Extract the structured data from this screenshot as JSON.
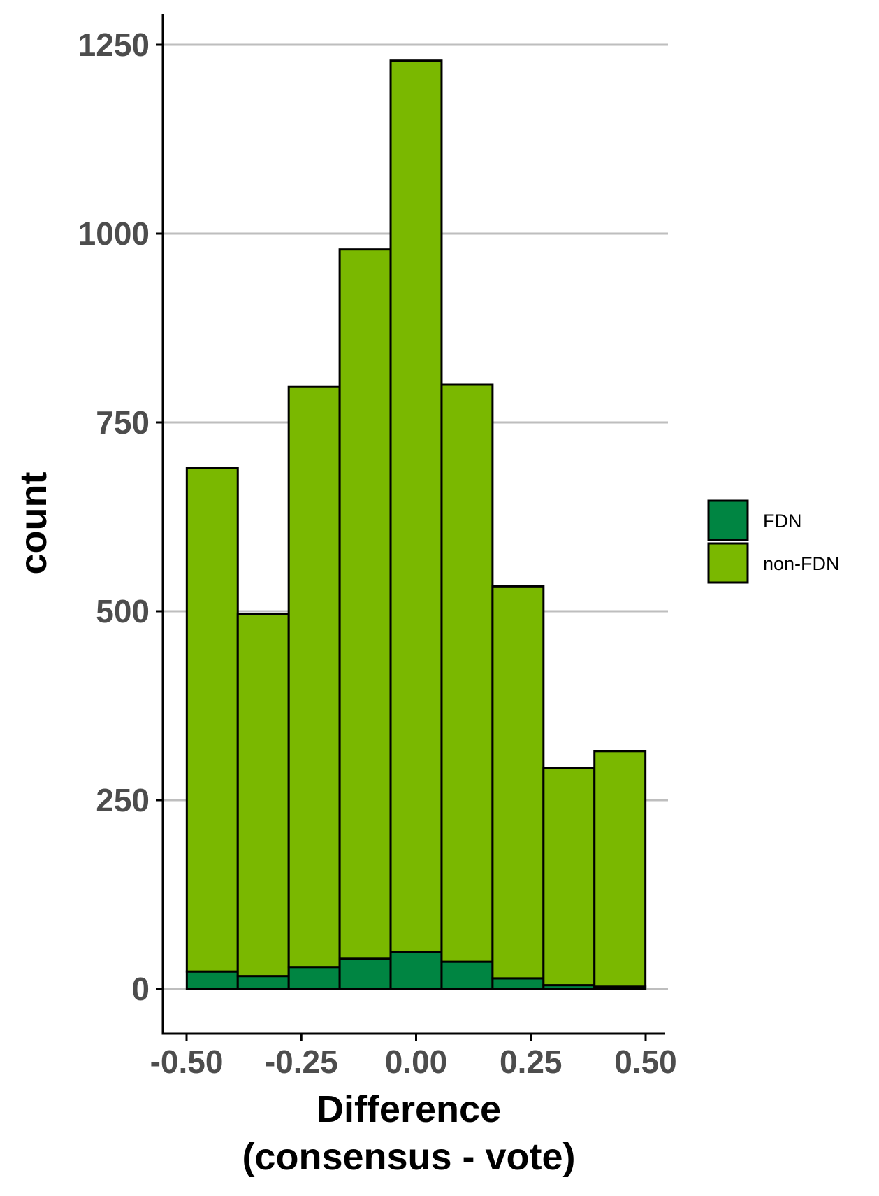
{
  "chart_data": {
    "type": "bar",
    "stacked": true,
    "histogram": true,
    "title": "",
    "xlabel_lines": [
      "Difference",
      "(consensus - vote)"
    ],
    "ylabel": "count",
    "bin_width": 0.111,
    "bin_centers": [
      -0.444,
      -0.333,
      -0.222,
      -0.111,
      0.0,
      0.111,
      0.222,
      0.333,
      0.444
    ],
    "xlim": [
      -0.5,
      0.5
    ],
    "ylim": [
      0,
      1250
    ],
    "x_ticks": [
      -0.5,
      -0.25,
      0.0,
      0.25,
      0.5
    ],
    "x_tick_labels": [
      "-0.50",
      "-0.25",
      "0.00",
      "0.25",
      "0.50"
    ],
    "y_ticks": [
      0,
      250,
      500,
      750,
      1000,
      1250
    ],
    "y_tick_labels": [
      "0",
      "250",
      "500",
      "750",
      "1000",
      "1250"
    ],
    "series": [
      {
        "name": "FDN",
        "color": "#008542",
        "values": [
          23,
          17,
          29,
          40,
          49,
          36,
          14,
          5,
          3
        ]
      },
      {
        "name": "non-FDN",
        "color": "#7ab800",
        "values": [
          667,
          479,
          768,
          939,
          1180,
          764,
          519,
          288,
          312
        ]
      }
    ],
    "grid": {
      "horizontal": true,
      "vertical": false
    },
    "legend_position": "right"
  }
}
